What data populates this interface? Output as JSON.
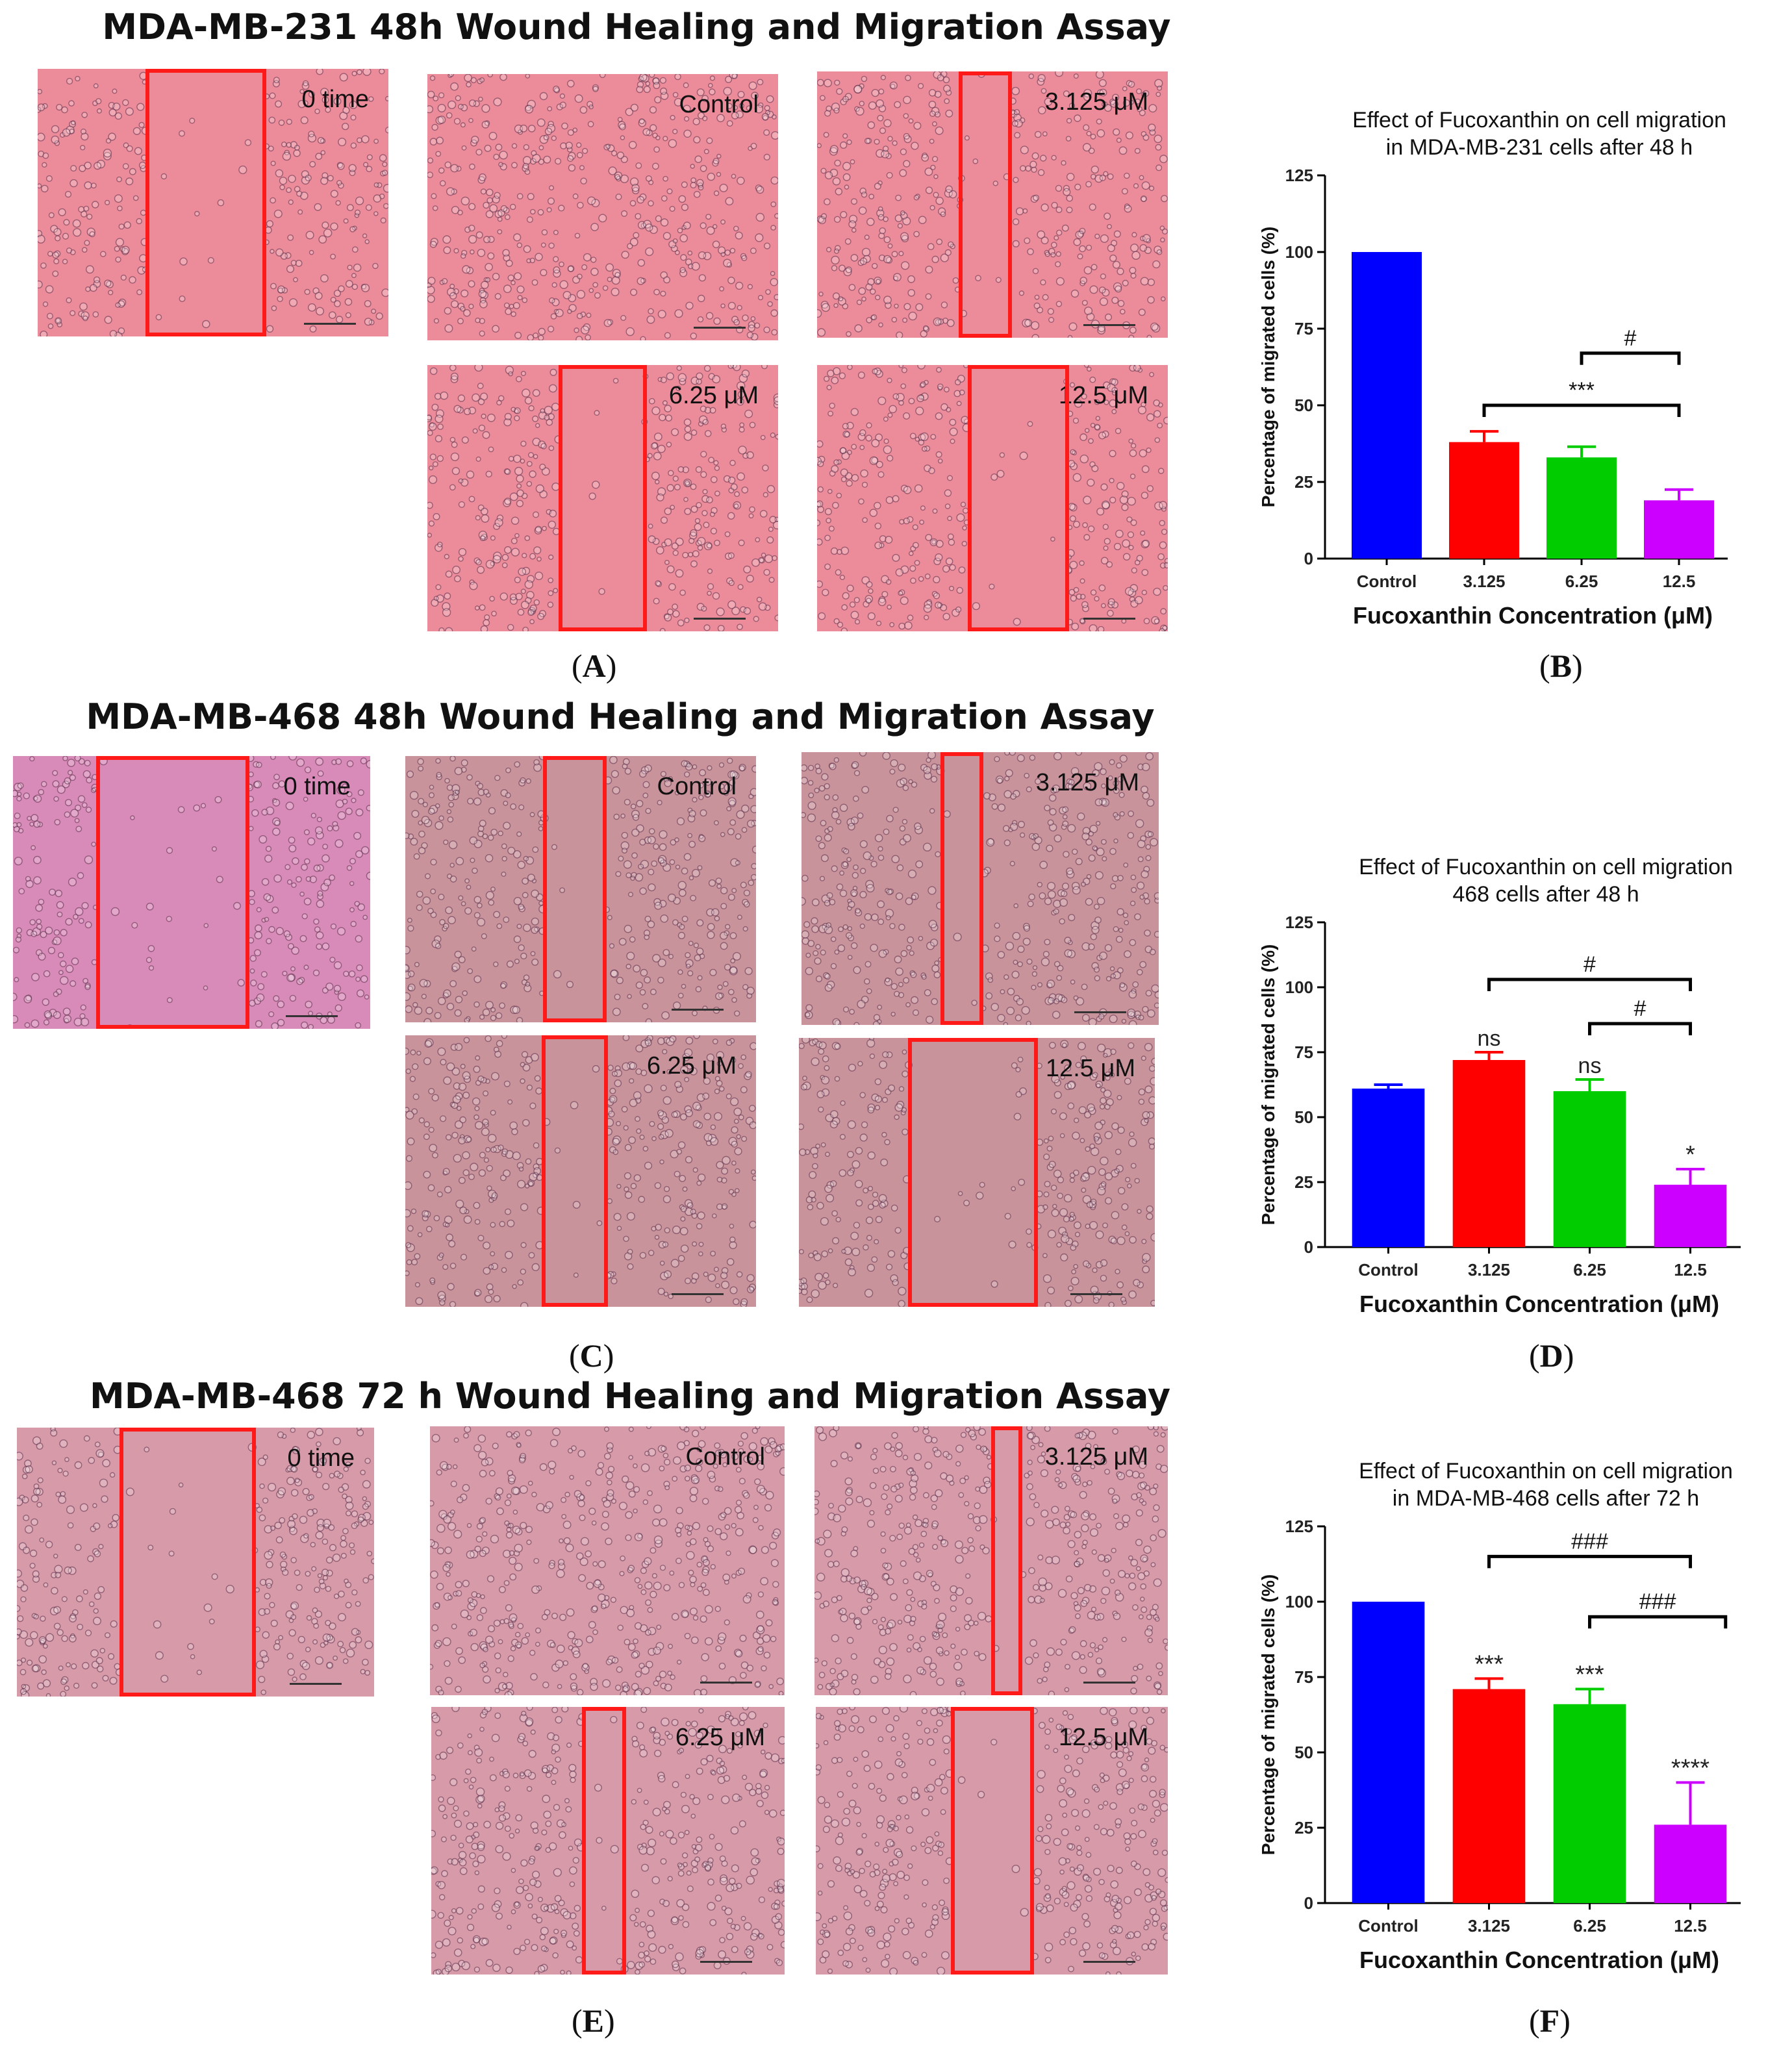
{
  "figure": {
    "titles": {
      "a": "MDA-MB-231 48h Wound Healing and Migration Assay",
      "c": "MDA-MB-468 48h Wound Healing and Migration Assay",
      "e": "MDA-MB-468 72 h Wound Healing and Migration Assay"
    },
    "panel_letters": [
      "A",
      "B",
      "C",
      "D",
      "E",
      "F"
    ],
    "image_labels": {
      "zero": "0 time",
      "control": "Control",
      "c1": "3.125 μM",
      "c2": "6.25 μM",
      "c3": "12.5 μM"
    },
    "image_tints": {
      "a": "#ec8c9a",
      "c_zero": "#d88ab8",
      "c": "#c9939b",
      "e": "#d69aa8",
      "wound_border": "#ff1a1a"
    }
  },
  "chart_data": [
    {
      "type": "bar",
      "title": "Effect of Fucoxanthin on cell migration",
      "subtitle": "in MDA-MB-231 cells after 48 h",
      "xlabel": "Fucoxanthin Concentration (μM)",
      "ylabel": "Percentage of migrated cells (%)",
      "categories": [
        "Control",
        "3.125",
        "6.25",
        "12.5"
      ],
      "values": [
        100,
        38,
        33,
        19
      ],
      "errors": [
        0,
        3.5,
        3.5,
        3.5
      ],
      "colors": [
        "#0000ff",
        "#ff0000",
        "#00cc00",
        "#cc00ff"
      ],
      "ylim": [
        0,
        125
      ],
      "yticks": [
        0,
        25,
        50,
        75,
        100,
        125
      ],
      "bar_labels": [
        "",
        "",
        "",
        ""
      ],
      "brackets": [
        {
          "from": 2,
          "to": 3,
          "label": "#",
          "y": 67
        },
        {
          "from": 1,
          "to": 3,
          "label": "***",
          "y": 50
        }
      ]
    },
    {
      "type": "bar",
      "title": "Effect of Fucoxanthin on cell migration",
      "subtitle": "468 cells after 48 h",
      "xlabel": "Fucoxanthin Concentration (μM)",
      "ylabel": "Percentage of migrated cells (%)",
      "categories": [
        "Control",
        "3.125",
        "6.25",
        "12.5"
      ],
      "values": [
        61,
        72,
        60,
        24
      ],
      "errors": [
        1.5,
        3,
        4.5,
        6
      ],
      "colors": [
        "#0000ff",
        "#ff0000",
        "#00cc00",
        "#cc00ff"
      ],
      "ylim": [
        0,
        125
      ],
      "yticks": [
        0,
        25,
        50,
        75,
        100,
        125
      ],
      "bar_labels": [
        "",
        "ns",
        "ns",
        "*"
      ],
      "brackets": [
        {
          "from": 1,
          "to": 3,
          "label": "#",
          "y": 103
        },
        {
          "from": 2,
          "to": 3,
          "label": "#",
          "y": 86
        }
      ]
    },
    {
      "type": "bar",
      "title": "Effect of Fucoxanthin on cell migration",
      "subtitle": "in MDA-MB-468 cells after 72 h",
      "xlabel": "Fucoxanthin Concentration (μM)",
      "ylabel": "Percentage of migrated cells (%)",
      "categories": [
        "Control",
        "3.125",
        "6.25",
        "12.5"
      ],
      "values": [
        100,
        71,
        66,
        26
      ],
      "errors": [
        0,
        3.5,
        5,
        14
      ],
      "colors": [
        "#0000ff",
        "#ff0000",
        "#00cc00",
        "#cc00ff"
      ],
      "ylim": [
        0,
        125
      ],
      "yticks": [
        0,
        25,
        50,
        75,
        100,
        125
      ],
      "bar_labels": [
        "",
        "***",
        "***",
        "****"
      ],
      "brackets": [
        {
          "from": 1,
          "to": 3,
          "label": "###",
          "y": 115
        },
        {
          "from": 2,
          "to": 3.35,
          "label": "###",
          "y": 95
        }
      ]
    }
  ]
}
